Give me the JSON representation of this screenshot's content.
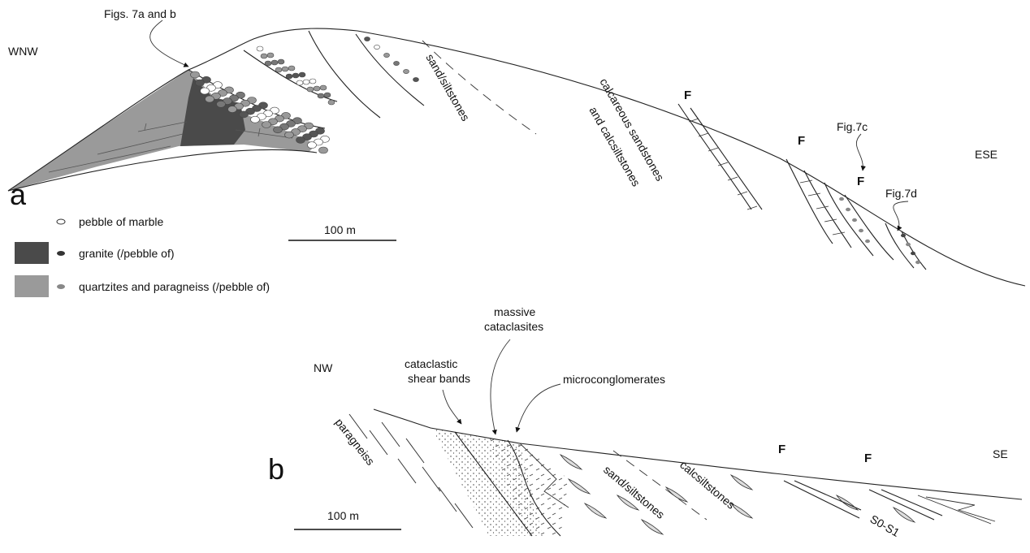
{
  "panel_a": {
    "label": "a",
    "left_direction": "WNW",
    "right_direction": "ESE",
    "callouts": [
      "Figs. 7a and b",
      "Fig.7c",
      "Fig.7d"
    ],
    "units": [
      "sand/siltstones",
      "calcareous sandstones",
      "and calcsiltstones"
    ],
    "faults": [
      "F",
      "F",
      "F"
    ],
    "scale_bar": "100 m",
    "legend": [
      "pebble of marble",
      "granite (/pebble of)",
      "quartzites and paragneiss (/pebble of)"
    ]
  },
  "panel_b": {
    "label": "b",
    "left_direction": "NW",
    "right_direction": "SE",
    "callouts": [
      "cataclastic",
      "shear bands",
      "massive",
      "cataclasites",
      "microconglomerates"
    ],
    "units": [
      "paragneiss",
      "sand/siltstones",
      "calcsiltstones",
      "S0-S1"
    ],
    "faults": [
      "F",
      "F"
    ],
    "scale_bar": "100 m"
  }
}
